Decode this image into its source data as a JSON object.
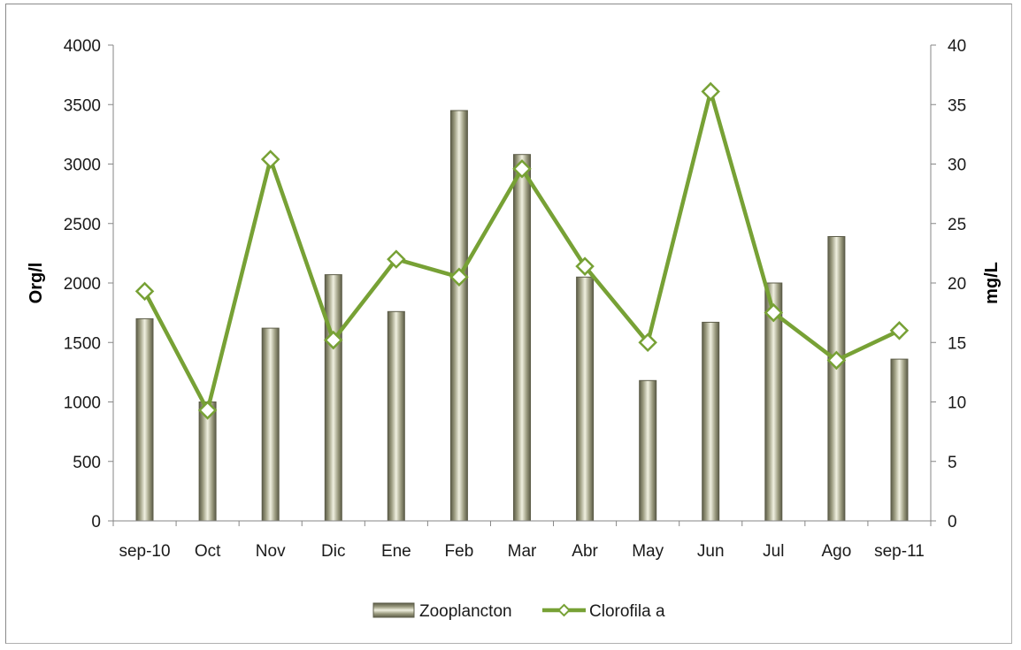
{
  "chart_data": {
    "type": "bar",
    "categories": [
      "sep-10",
      "Oct",
      "Nov",
      "Dic",
      "Ene",
      "Feb",
      "Mar",
      "Abr",
      "May",
      "Jun",
      "Jul",
      "Ago",
      "sep-11"
    ],
    "series": [
      {
        "name": "Zooplancton",
        "type": "bar",
        "axis": "left",
        "values": [
          1700,
          1000,
          1620,
          2070,
          1760,
          3450,
          3080,
          2050,
          1180,
          1670,
          2000,
          2390,
          1360
        ]
      },
      {
        "name": "Clorofila a",
        "type": "line",
        "axis": "right",
        "values": [
          19.3,
          9.3,
          30.4,
          15.2,
          22.0,
          20.5,
          29.6,
          21.4,
          15.0,
          36.1,
          17.5,
          13.5,
          16.0
        ]
      }
    ],
    "ylabel": "Org/l",
    "y2label": "mg/L",
    "ylim": [
      0,
      4000
    ],
    "y2lim": [
      0,
      40
    ],
    "yticks": [
      "0",
      "500",
      "1000",
      "1500",
      "2000",
      "2500",
      "3000",
      "3500",
      "4000"
    ],
    "y2ticks": [
      "0",
      "5",
      "10",
      "15",
      "20",
      "25",
      "30",
      "35",
      "40"
    ],
    "grid": false,
    "legend_position": "bottom",
    "colors": {
      "bar": "#9a9a7e",
      "bar_light": "#e9e9d8",
      "bar_dark": "#5c5c48",
      "line": "#77a135"
    }
  }
}
